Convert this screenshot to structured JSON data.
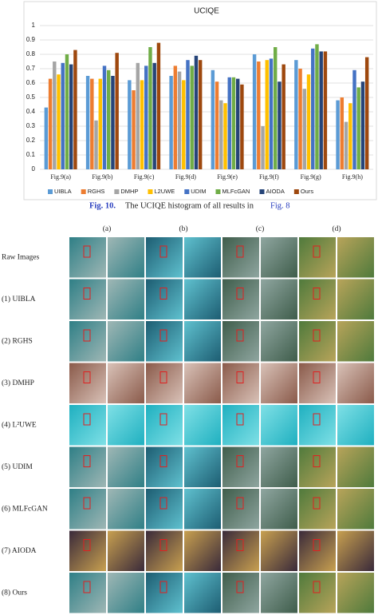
{
  "chart_data": {
    "type": "bar",
    "title": "UCIQE",
    "categories": [
      "Fig.9(a)",
      "Fig.9(b)",
      "Fig.9(c)",
      "Fig.9(d)",
      "Fig.9(e)",
      "Fig.9(f)",
      "Fig.9(g)",
      "Fig.9(h)"
    ],
    "series": [
      {
        "name": "UIBLA",
        "color": "#5b9bd5",
        "values": [
          0.43,
          0.65,
          0.62,
          0.65,
          0.69,
          0.8,
          0.76,
          0.48
        ]
      },
      {
        "name": "RGHS",
        "color": "#ed7d31",
        "values": [
          0.63,
          0.63,
          0.55,
          0.72,
          0.61,
          0.75,
          0.7,
          0.5
        ]
      },
      {
        "name": "DMHP",
        "color": "#a5a5a5",
        "values": [
          0.75,
          0.34,
          0.74,
          0.68,
          0.48,
          0.3,
          0.56,
          0.33
        ]
      },
      {
        "name": "L2UWE",
        "color": "#ffc000",
        "values": [
          0.66,
          0.63,
          0.62,
          0.62,
          0.46,
          0.76,
          0.66,
          0.46
        ]
      },
      {
        "name": "UDIM",
        "color": "#4472c4",
        "values": [
          0.74,
          0.72,
          0.72,
          0.76,
          0.64,
          0.77,
          0.84,
          0.69
        ]
      },
      {
        "name": "MLFcGAN",
        "color": "#70ad47",
        "values": [
          0.8,
          0.69,
          0.85,
          0.72,
          0.64,
          0.85,
          0.87,
          0.57
        ]
      },
      {
        "name": "AIODA",
        "color": "#264478",
        "values": [
          0.73,
          0.65,
          0.74,
          0.79,
          0.63,
          0.61,
          0.82,
          0.61
        ]
      },
      {
        "name": "Ours",
        "color": "#9e480e",
        "values": [
          0.83,
          0.81,
          0.88,
          0.76,
          0.59,
          0.73,
          0.82,
          0.78
        ]
      }
    ],
    "ylim": [
      0,
      1
    ],
    "yticks": [
      0,
      0.1,
      0.2,
      0.3,
      0.4,
      0.5,
      0.6,
      0.7,
      0.8,
      0.9,
      1
    ],
    "grid": true,
    "legend": "bottom"
  },
  "caption": {
    "label": "Fig. 10.",
    "text": "The UCIQE histogram of all results in",
    "ref": "Fig. 8"
  },
  "image_grid": {
    "columns": [
      "(a)",
      "(b)",
      "(c)",
      "(d)"
    ],
    "rows": [
      "Raw Images",
      "(1) UIBLA",
      "(2) RGHS",
      "(3) DMHP",
      "(4) L²UWE",
      "(5) UDIM",
      "(6) MLFcGAN",
      "(7) AIODA",
      "(8) Ours"
    ]
  }
}
